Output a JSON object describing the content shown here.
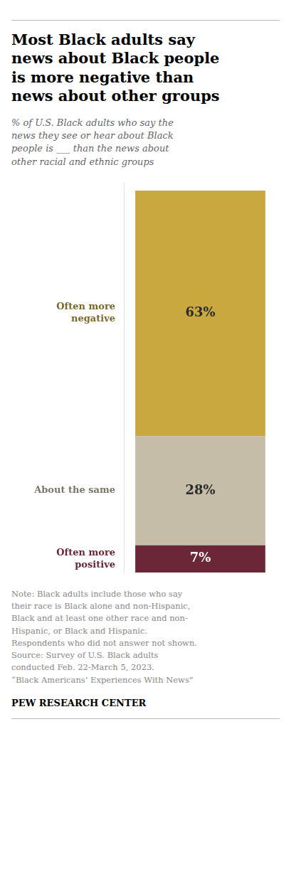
{
  "chart_data": {
    "type": "bar",
    "stacked": true,
    "title": "Most Black adults say\nnews about Black people\nis more negative than\nnews about other groups",
    "subtitle": "% of U.S. Black adults who say the\nnews they see or hear about Black\npeople is ___ than the news about\nother racial and ethnic groups",
    "categories": [
      "Often more\nnegative",
      "About the same",
      "Often more\npositive"
    ],
    "values": [
      63,
      28,
      7
    ],
    "value_labels": [
      "63%",
      "28%",
      "7%"
    ],
    "data_labels": true,
    "colors": [
      "#C9A840",
      "#C5BDA8",
      "#6B2737"
    ],
    "ylim": [
      0,
      100
    ],
    "tick_labels": false,
    "grid": false,
    "note": [
      "Note: Black adults include those who say",
      "their race is Black alone and non-Hispanic,",
      "Black and at least one other race and non-",
      "Hispanic, or Black and Hispanic.",
      "Respondents who did not answer not shown.",
      "Source: Survey of U.S. Black adults",
      "conducted Feb. 22-March 5, 2023.",
      "“Black Americans’ Experiences With News”"
    ],
    "source": "PEW RESEARCH CENTER"
  }
}
